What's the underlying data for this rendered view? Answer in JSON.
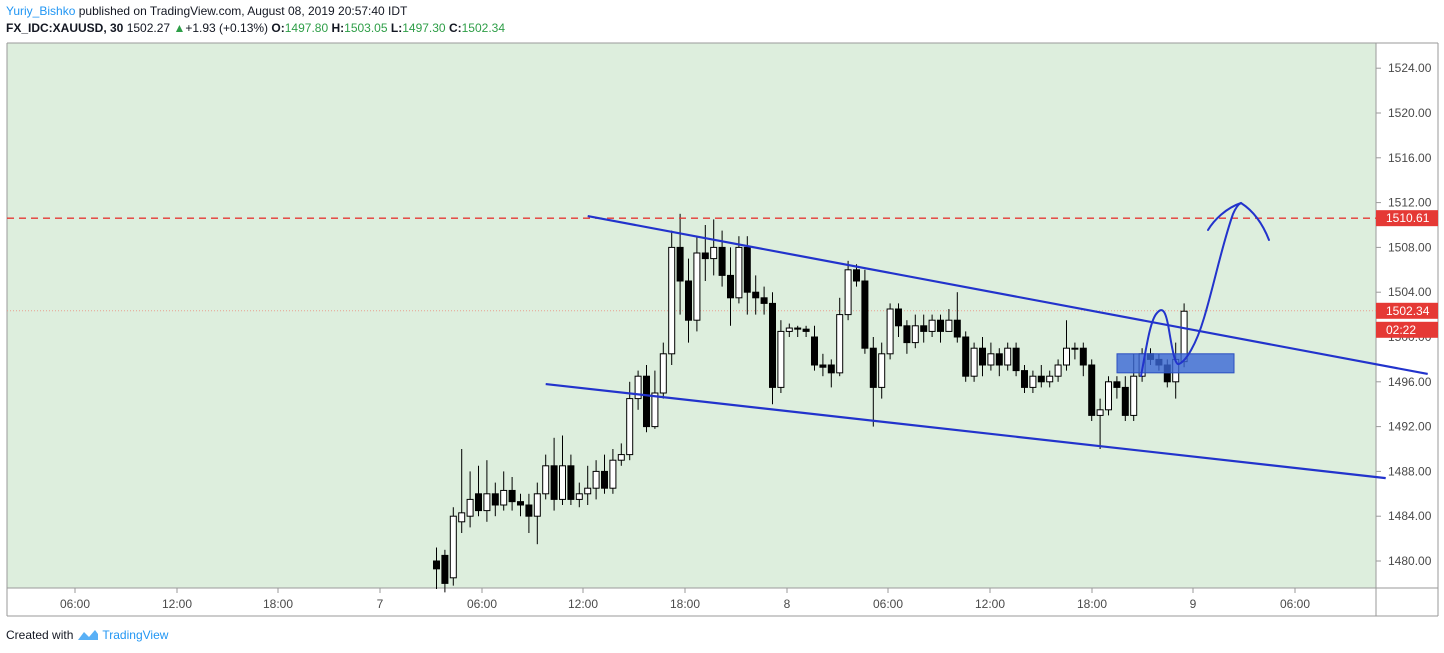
{
  "header": {
    "author": "Yuriy_Bishko",
    "published_text": "published on TradingView.com, August 08, 2019 20:57:40 IDT",
    "symbol": "FX_IDC:XAUUSD, 30",
    "last": "1502.27",
    "change": "+1.93 (+0.13%)",
    "o_label": "O:",
    "o_value": "1497.80",
    "h_label": "H:",
    "h_value": "1503.05",
    "l_label": "L:",
    "l_value": "1497.30",
    "c_label": "C:",
    "c_value": "1502.34"
  },
  "footer": {
    "created_with": "Created with",
    "brand": "TradingView"
  },
  "colors": {
    "background": "#ddeedd",
    "accent_blue": "#2233cc",
    "resistance": "#e53935",
    "price_tag": "#e53935",
    "zone": "#3a66d6"
  },
  "chart_data": {
    "type": "candlestick",
    "y_ticks": [
      "1480.00",
      "1484.00",
      "1488.00",
      "1492.00",
      "1496.00",
      "1500.00",
      "1504.00",
      "1508.00",
      "1512.00",
      "1516.00",
      "1520.00",
      "1524.00"
    ],
    "ylim": [
      1477,
      1526
    ],
    "x_ticks": [
      "06:00",
      "12:00",
      "18:00",
      "7",
      "06:00",
      "12:00",
      "18:00",
      "8",
      "06:00",
      "12:00",
      "18:00",
      "9",
      "06:00"
    ],
    "resistance_level": 1510.61,
    "resistance_label": "1510.61",
    "last_price": 1502.34,
    "last_price_label": "1502.34",
    "countdown_label": "02:22",
    "candles_approx": [
      [
        1480.0,
        1479.3,
        1477.5,
        1481.2
      ],
      [
        1480.5,
        1478.0,
        1477.2,
        1481.0
      ],
      [
        1478.5,
        1484.0,
        1477.8,
        1484.8
      ],
      [
        1483.5,
        1484.3,
        1482.5,
        1490.0
      ],
      [
        1484.0,
        1485.5,
        1483.0,
        1488.0
      ],
      [
        1486.0,
        1484.5,
        1484.0,
        1488.5
      ],
      [
        1484.5,
        1486.0,
        1483.5,
        1489.0
      ],
      [
        1486.0,
        1485.0,
        1484.0,
        1487.0
      ],
      [
        1485.0,
        1486.3,
        1484.5,
        1488.0
      ],
      [
        1486.3,
        1485.3,
        1484.5,
        1487.5
      ],
      [
        1485.3,
        1485.0,
        1484.0,
        1486.0
      ],
      [
        1485.0,
        1484.0,
        1482.5,
        1486.0
      ],
      [
        1484.0,
        1486.0,
        1481.5,
        1487.0
      ],
      [
        1486.0,
        1488.5,
        1485.5,
        1489.5
      ],
      [
        1488.5,
        1485.5,
        1484.5,
        1491.0
      ],
      [
        1485.5,
        1488.5,
        1485.0,
        1491.2
      ],
      [
        1488.5,
        1485.5,
        1485.0,
        1489.5
      ],
      [
        1485.5,
        1486.0,
        1484.8,
        1487.0
      ],
      [
        1486.0,
        1486.5,
        1485.0,
        1488.5
      ],
      [
        1486.5,
        1488.0,
        1485.5,
        1489.0
      ],
      [
        1488.0,
        1486.5,
        1486.0,
        1489.5
      ],
      [
        1486.5,
        1489.0,
        1486.0,
        1490.0
      ],
      [
        1489.0,
        1489.5,
        1488.5,
        1490.5
      ],
      [
        1489.5,
        1494.5,
        1489.0,
        1496.0
      ],
      [
        1494.5,
        1496.5,
        1493.5,
        1497.0
      ],
      [
        1496.5,
        1492.0,
        1491.5,
        1497.5
      ],
      [
        1492.0,
        1495.0,
        1491.8,
        1497.0
      ],
      [
        1495.0,
        1498.5,
        1494.5,
        1499.5
      ],
      [
        1498.5,
        1508.0,
        1497.5,
        1509.5
      ],
      [
        1508.0,
        1505.0,
        1502.0,
        1511.0
      ],
      [
        1505.0,
        1501.5,
        1499.5,
        1507.0
      ],
      [
        1501.5,
        1507.5,
        1500.5,
        1509.0
      ],
      [
        1507.5,
        1507.0,
        1505.0,
        1510.0
      ],
      [
        1507.0,
        1508.0,
        1505.5,
        1510.5
      ],
      [
        1508.0,
        1505.5,
        1504.5,
        1509.5
      ],
      [
        1505.5,
        1503.5,
        1501.0,
        1508.0
      ],
      [
        1503.5,
        1508.0,
        1503.0,
        1509.0
      ],
      [
        1508.0,
        1504.0,
        1502.0,
        1509.0
      ],
      [
        1504.0,
        1503.5,
        1502.0,
        1505.5
      ],
      [
        1503.5,
        1503.0,
        1502.0,
        1504.5
      ],
      [
        1503.0,
        1495.5,
        1494.0,
        1504.0
      ],
      [
        1495.5,
        1500.5,
        1495.0,
        1501.5
      ],
      [
        1500.5,
        1500.8,
        1500.0,
        1501.2
      ],
      [
        1500.8,
        1500.7,
        1500.0,
        1501.0
      ],
      [
        1500.7,
        1500.5,
        1500.0,
        1501.0
      ],
      [
        1500.0,
        1497.5,
        1497.0,
        1501.0
      ],
      [
        1497.5,
        1497.3,
        1496.5,
        1498.5
      ],
      [
        1497.5,
        1496.8,
        1495.5,
        1498.0
      ],
      [
        1496.8,
        1502.0,
        1496.5,
        1503.5
      ],
      [
        1502.0,
        1506.0,
        1501.5,
        1506.8
      ],
      [
        1506.0,
        1505.0,
        1504.5,
        1506.5
      ],
      [
        1505.0,
        1499.0,
        1498.5,
        1506.0
      ],
      [
        1499.0,
        1495.5,
        1492.0,
        1500.0
      ],
      [
        1495.5,
        1498.5,
        1494.5,
        1499.5
      ],
      [
        1498.5,
        1502.5,
        1498.0,
        1503.0
      ],
      [
        1502.5,
        1501.0,
        1500.0,
        1503.0
      ],
      [
        1501.0,
        1499.5,
        1498.5,
        1501.5
      ],
      [
        1499.5,
        1501.0,
        1499.0,
        1502.0
      ],
      [
        1501.0,
        1500.5,
        1499.5,
        1502.0
      ],
      [
        1500.5,
        1501.5,
        1500.0,
        1502.0
      ],
      [
        1501.5,
        1500.5,
        1499.5,
        1502.0
      ],
      [
        1500.5,
        1501.5,
        1500.5,
        1502.5
      ],
      [
        1501.5,
        1500.0,
        1499.5,
        1504.0
      ],
      [
        1500.0,
        1496.5,
        1496.0,
        1500.5
      ],
      [
        1496.5,
        1499.0,
        1496.0,
        1499.5
      ],
      [
        1499.0,
        1497.5,
        1496.5,
        1500.0
      ],
      [
        1497.5,
        1498.5,
        1497.0,
        1499.5
      ],
      [
        1498.5,
        1497.5,
        1496.5,
        1499.0
      ],
      [
        1497.5,
        1499.0,
        1497.0,
        1499.5
      ],
      [
        1499.0,
        1497.0,
        1496.5,
        1499.5
      ],
      [
        1497.0,
        1495.5,
        1495.0,
        1497.5
      ],
      [
        1495.5,
        1496.5,
        1495.0,
        1497.0
      ],
      [
        1496.5,
        1496.0,
        1495.5,
        1497.5
      ],
      [
        1496.0,
        1496.5,
        1495.5,
        1497.0
      ],
      [
        1496.5,
        1497.5,
        1496.0,
        1498.0
      ],
      [
        1497.5,
        1499.0,
        1497.0,
        1501.5
      ],
      [
        1499.0,
        1499.0,
        1498.0,
        1499.5
      ],
      [
        1499.0,
        1497.5,
        1496.5,
        1499.5
      ],
      [
        1497.5,
        1493.0,
        1492.5,
        1498.0
      ],
      [
        1493.0,
        1493.5,
        1490.0,
        1494.5
      ],
      [
        1493.5,
        1496.0,
        1493.0,
        1496.5
      ],
      [
        1496.0,
        1495.5,
        1494.5,
        1496.5
      ],
      [
        1495.5,
        1493.0,
        1492.5,
        1496.5
      ],
      [
        1493.0,
        1496.5,
        1492.5,
        1498.5
      ],
      [
        1496.5,
        1498.5,
        1496.0,
        1499.0
      ],
      [
        1498.5,
        1498.0,
        1497.5,
        1499.0
      ],
      [
        1498.0,
        1497.5,
        1497.0,
        1498.5
      ],
      [
        1497.5,
        1496.0,
        1495.5,
        1498.0
      ],
      [
        1496.0,
        1498.0,
        1494.5,
        1499.5
      ],
      [
        1497.8,
        1502.3,
        1497.3,
        1503.0
      ]
    ],
    "trendlines": [
      {
        "name": "upper",
        "from": [
          18,
          1510.8
        ],
        "to": [
          118,
          1496.7
        ]
      },
      {
        "name": "lower",
        "from": [
          13,
          1495.8
        ],
        "to": [
          113,
          1487.4
        ]
      }
    ],
    "zone": {
      "y_top": 1498.5,
      "y_bottom": 1496.8
    }
  }
}
